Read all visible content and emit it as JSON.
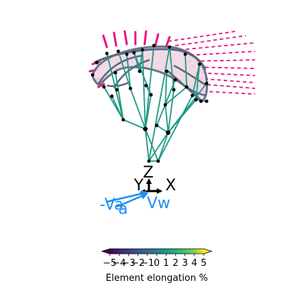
{
  "axes": {
    "x_label": "X",
    "y_label": "Y",
    "z_label": "Z"
  },
  "vectors": {
    "va_label": "-Va",
    "vw_label": "Vw",
    "vw_color": "#1f8ef1"
  },
  "colorbar": {
    "label": "Element elongation %",
    "ticks": [
      "−5",
      "−4",
      "−3",
      "−2",
      "−1",
      "0",
      "1",
      "2",
      "3",
      "4",
      "5"
    ],
    "colormap": "viridis",
    "extend": "both"
  },
  "colors": {
    "canopy_edge": "#5a6780",
    "canopy_fill": "#f0d6e2",
    "bridle_line": "#1e9a85",
    "wind_streak": "#e8177f",
    "node": "#000000",
    "frame_arrow": "#000000"
  }
}
